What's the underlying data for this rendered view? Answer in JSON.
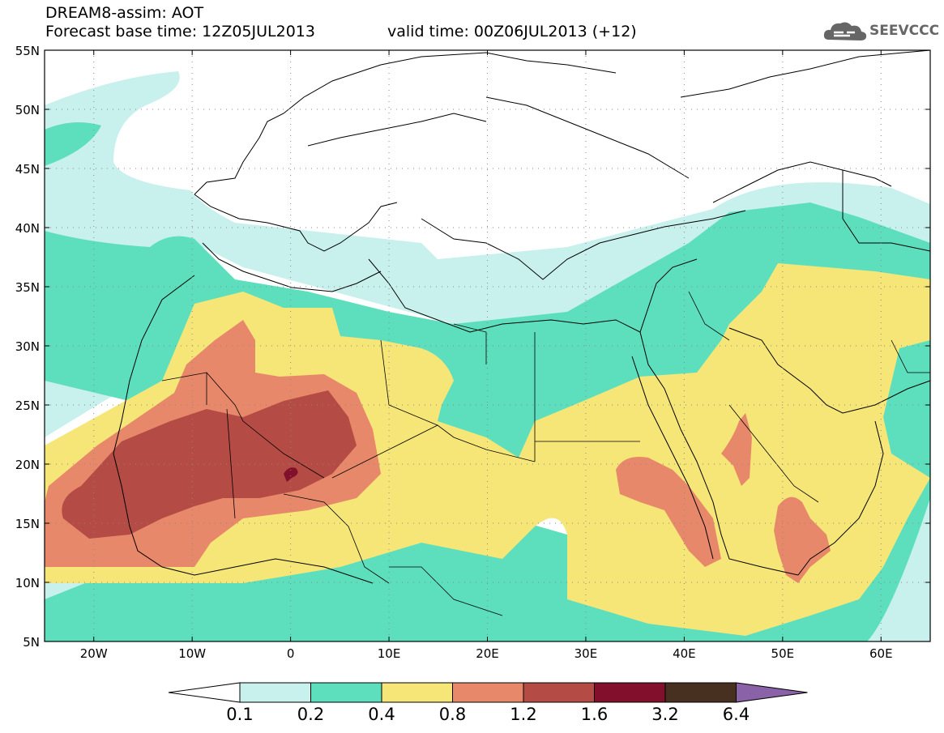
{
  "header": {
    "title": "DREAM8-assim: AOT",
    "base_time": "Forecast base time: 12Z05JUL2013",
    "valid_time": "valid time: 00Z06JUL2013 (+12)"
  },
  "logo": {
    "text": "SEEVCCC",
    "icon": "cloud-icon"
  },
  "map": {
    "lat_labels": [
      "55N",
      "50N",
      "45N",
      "40N",
      "35N",
      "30N",
      "25N",
      "20N",
      "15N",
      "10N",
      "5N"
    ],
    "lon_labels": [
      "20W",
      "10W",
      "0",
      "10E",
      "20E",
      "30E",
      "40E",
      "50E",
      "60E"
    ],
    "lat_values": [
      55,
      50,
      45,
      40,
      35,
      30,
      25,
      20,
      15,
      10,
      5
    ],
    "lon_values": [
      -20,
      -10,
      0,
      10,
      20,
      30,
      40,
      50,
      60
    ],
    "lon_range": [
      -25,
      65
    ],
    "lat_range": [
      5,
      55
    ],
    "grid": true
  },
  "colorbar": {
    "levels": [
      "0.1",
      "0.2",
      "0.4",
      "0.8",
      "1.2",
      "1.6",
      "3.2",
      "6.4"
    ],
    "colors": [
      "#c8f0ec",
      "#5ddfbe",
      "#f6e678",
      "#e8886a",
      "#b44b44",
      "#82102c",
      "#483020",
      "#8a62a8"
    ],
    "under_color": "#ffffff"
  }
}
